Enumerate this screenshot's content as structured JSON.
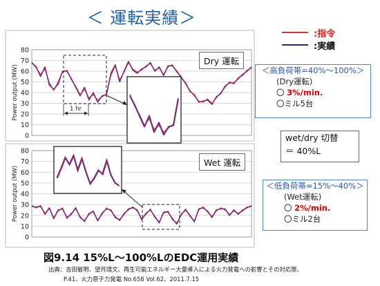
{
  "page": {
    "title": "＜ 運転実績＞",
    "caption": "図9.14 15%L～100%LのEDC運用実績",
    "source_line1": "出典：吉田敏明、望月靖文、再生可能エネルギー大量導入による火力発電への影響とその対応策、",
    "source_line2": "P.41、火力原子力発電 No.658 Vol.62、2011.7.15"
  },
  "legend": [
    {
      "label": ":指令",
      "color": "#e03030"
    },
    {
      "label": ":実績",
      "color": "#2b2b6b"
    }
  ],
  "high_load_box": {
    "header": "＜高負荷帯=40%～100%＞",
    "mode": "(Dry運転)",
    "rate": "3%/min.",
    "mills": "〇ミル5台",
    "bullet": "〇 "
  },
  "switch_box": {
    "line1": "wet/dry 切替",
    "line2": "＝ 40%L"
  },
  "low_load_box": {
    "header": "＜低負荷帯=15%～40%＞",
    "mode": "(Wet運転)",
    "rate": "2%/min.",
    "mills": "〇ミル2台",
    "bullet": "〇 "
  },
  "chart_data": [
    {
      "type": "line",
      "label": "Dry 運転",
      "ylabel": "Power output (MW)",
      "ylim": [
        0,
        80
      ],
      "yticks": [
        0,
        10,
        20,
        30,
        40,
        50,
        60,
        70,
        80
      ],
      "time_annotation": "1 hr",
      "x": [
        0,
        2,
        4,
        6,
        8,
        10,
        12,
        14,
        16,
        18,
        20,
        22,
        24,
        26,
        28,
        30,
        32,
        34,
        36,
        38,
        40,
        42,
        44,
        46,
        48,
        50,
        52,
        54,
        56,
        58,
        60,
        62,
        64,
        66,
        68,
        70,
        72,
        74,
        76,
        78,
        80,
        82,
        84,
        86,
        88,
        90,
        92,
        94,
        96,
        98,
        100
      ],
      "series": [
        {
          "name": "指令",
          "color": "#e03030",
          "values": [
            68,
            63,
            57,
            62,
            49,
            42,
            50,
            59,
            61,
            52,
            46,
            38,
            43,
            35,
            38,
            33,
            36,
            39,
            56,
            65,
            52,
            59,
            68,
            62,
            59,
            61,
            65,
            67,
            61,
            63,
            57,
            64,
            66,
            59,
            55,
            48,
            42,
            37,
            32,
            31,
            34,
            30,
            35,
            40,
            45,
            50,
            48,
            54,
            56,
            61,
            63
          ]
        },
        {
          "name": "実績",
          "color": "#7a2a7a",
          "values": [
            68,
            64,
            55,
            64,
            47,
            43,
            48,
            60,
            60,
            53,
            45,
            37,
            45,
            33,
            40,
            31,
            37,
            38,
            58,
            66,
            50,
            60,
            69,
            61,
            58,
            62,
            64,
            68,
            60,
            64,
            56,
            65,
            65,
            60,
            54,
            49,
            41,
            38,
            31,
            32,
            33,
            29,
            36,
            39,
            46,
            49,
            49,
            53,
            57,
            60,
            64
          ]
        }
      ]
    },
    {
      "type": "line",
      "label": "Wet 運転",
      "ylabel": "Power output (MW)",
      "ylim": [
        0,
        80
      ],
      "yticks": [
        0,
        10,
        20,
        30,
        40,
        50,
        60,
        70,
        80
      ],
      "x": [
        0,
        2,
        4,
        6,
        8,
        10,
        12,
        14,
        16,
        18,
        20,
        22,
        24,
        26,
        28,
        30,
        32,
        34,
        36,
        38,
        40,
        42,
        44,
        46,
        48,
        50,
        52,
        54,
        56,
        58,
        60,
        62,
        64,
        66,
        68,
        70,
        72,
        74,
        76,
        78,
        80,
        82,
        84,
        86,
        88,
        90,
        92,
        94,
        96,
        98,
        100
      ],
      "series": [
        {
          "name": "指令",
          "color": "#e03030",
          "values": [
            28,
            28,
            28,
            22,
            26,
            18,
            24,
            27,
            17,
            22,
            26,
            19,
            14,
            22,
            23,
            16,
            21,
            27,
            24,
            19,
            15,
            22,
            25,
            28,
            24,
            17,
            21,
            26,
            18,
            14,
            22,
            24,
            16,
            13,
            20,
            26,
            19,
            15,
            25,
            28,
            23,
            19,
            24,
            27,
            25,
            21,
            24,
            22,
            24,
            28,
            28
          ]
        },
        {
          "name": "実績",
          "color": "#7a2a7a",
          "values": [
            29,
            27,
            29,
            21,
            27,
            17,
            25,
            26,
            18,
            21,
            27,
            18,
            15,
            21,
            24,
            15,
            22,
            26,
            25,
            18,
            16,
            21,
            26,
            27,
            25,
            16,
            22,
            25,
            19,
            13,
            23,
            23,
            17,
            12,
            21,
            25,
            20,
            14,
            26,
            27,
            24,
            18,
            25,
            26,
            26,
            20,
            25,
            21,
            25,
            27,
            29
          ]
        }
      ],
      "inset_values": [
        52,
        62,
        73,
        66,
        75,
        60,
        72,
        58,
        46,
        52,
        60,
        56,
        70,
        55,
        47,
        44
      ]
    }
  ]
}
